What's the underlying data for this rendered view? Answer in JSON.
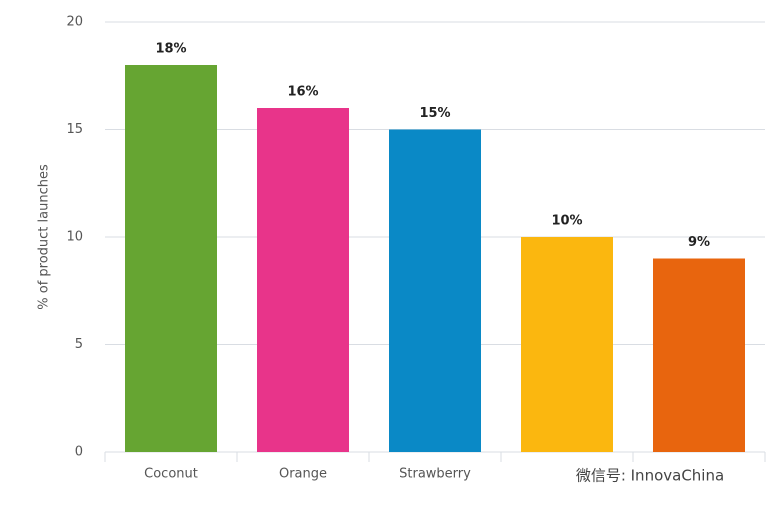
{
  "chart_data": {
    "type": "bar",
    "y_label": "% of product launches",
    "categories": [
      "Coconut",
      "Orange",
      "Strawberry",
      null,
      null
    ],
    "values": [
      18,
      16,
      15,
      10,
      9
    ],
    "value_labels": [
      "18%",
      "16%",
      "15%",
      "10%",
      "9%"
    ],
    "colors": [
      "#66a532",
      "#e8348a",
      "#0a89c6",
      "#fbb70f",
      "#e8650e"
    ],
    "ylim": [
      0,
      20
    ],
    "yticks": [
      0,
      5,
      10,
      15,
      20
    ],
    "grid": true,
    "watermark": "微信号: InnovaChina"
  }
}
